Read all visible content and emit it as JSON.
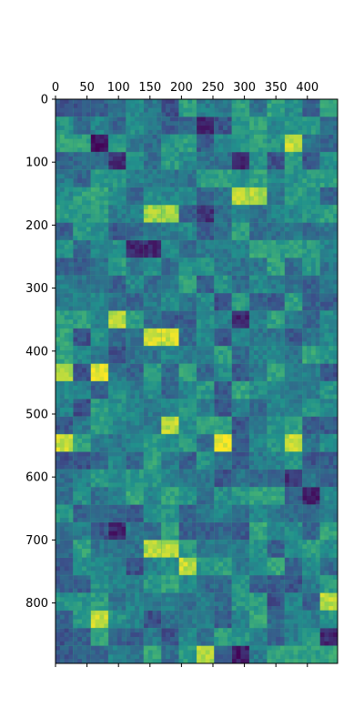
{
  "chart_data": {
    "type": "heatmap",
    "title": "",
    "xlabel": "",
    "ylabel": "",
    "colormap": "viridis",
    "x_axis_position": "top",
    "y_axis_inverted": true,
    "xlim": [
      0,
      448
    ],
    "ylim": [
      896,
      0
    ],
    "xticks": [
      0,
      50,
      100,
      150,
      200,
      250,
      300,
      350,
      400
    ],
    "yticks": [
      0,
      100,
      200,
      300,
      400,
      500,
      600,
      700,
      800
    ],
    "grid": false,
    "legend": "none",
    "tile_grid": {
      "columns": 16,
      "rows": 32,
      "tile_size": 28,
      "note_colors": [
        "#440154",
        "#3b528b",
        "#21918c",
        "#5ec962",
        "#fde725"
      ]
    },
    "hotspots": [
      {
        "x": 65,
        "y": 65,
        "level": 0.05
      },
      {
        "x": 100,
        "y": 100,
        "level": 0.15
      },
      {
        "x": 290,
        "y": 100,
        "level": 0.1
      },
      {
        "x": 380,
        "y": 72,
        "level": 0.92
      },
      {
        "x": 235,
        "y": 40,
        "level": 0.12
      },
      {
        "x": 165,
        "y": 180,
        "level": 0.85
      },
      {
        "x": 235,
        "y": 180,
        "level": 0.15
      },
      {
        "x": 305,
        "y": 155,
        "level": 0.88
      },
      {
        "x": 135,
        "y": 240,
        "level": 0.12
      },
      {
        "x": 100,
        "y": 350,
        "level": 0.9
      },
      {
        "x": 165,
        "y": 375,
        "level": 0.92
      },
      {
        "x": 70,
        "y": 435,
        "level": 0.95
      },
      {
        "x": 15,
        "y": 435,
        "level": 0.9
      },
      {
        "x": 295,
        "y": 350,
        "level": 0.12
      },
      {
        "x": 270,
        "y": 550,
        "level": 0.98
      },
      {
        "x": 15,
        "y": 550,
        "level": 0.92
      },
      {
        "x": 180,
        "y": 520,
        "level": 0.9
      },
      {
        "x": 100,
        "y": 690,
        "level": 0.1
      },
      {
        "x": 405,
        "y": 635,
        "level": 0.1
      },
      {
        "x": 70,
        "y": 830,
        "level": 0.9
      },
      {
        "x": 295,
        "y": 885,
        "level": 0.08
      },
      {
        "x": 435,
        "y": 855,
        "level": 0.12
      },
      {
        "x": 435,
        "y": 800,
        "level": 0.9
      },
      {
        "x": 235,
        "y": 885,
        "level": 0.88
      },
      {
        "x": 210,
        "y": 745,
        "level": 0.9
      },
      {
        "x": 165,
        "y": 715,
        "level": 0.88
      },
      {
        "x": 380,
        "y": 600,
        "level": 0.15
      },
      {
        "x": 380,
        "y": 545,
        "level": 0.9
      }
    ]
  }
}
